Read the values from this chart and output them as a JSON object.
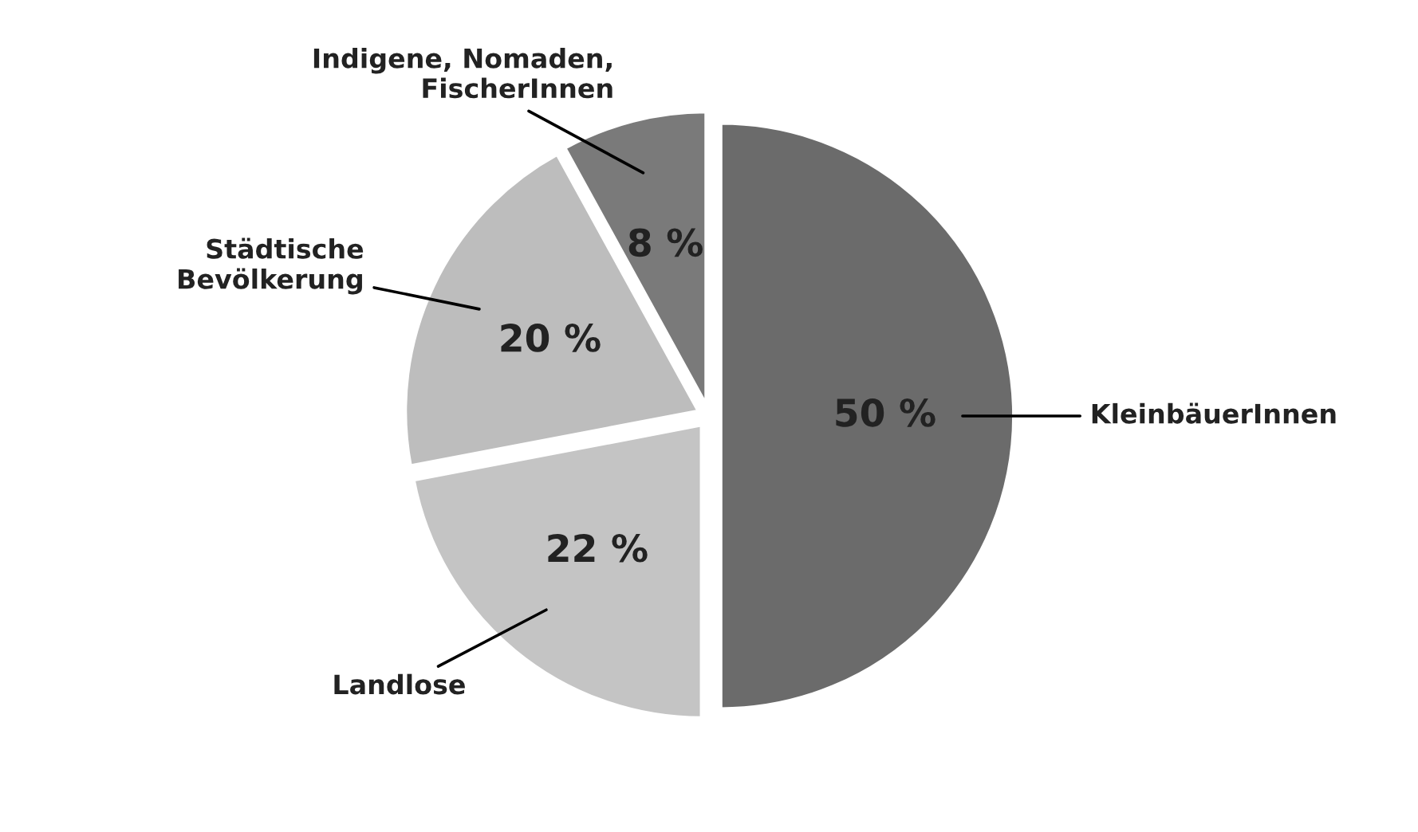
{
  "chart_data": {
    "type": "pie",
    "categories": [
      "KleinbäuerInnen",
      "Landlose",
      "Städtische\nBevölkerung",
      "Indigene, Nomaden,\nFischerInnen"
    ],
    "values": [
      50,
      22,
      20,
      8
    ],
    "colors": [
      "#6b6b6b",
      "#c4c4c4",
      "#bdbdbd",
      "#7a7a7a"
    ],
    "value_labels": [
      "50 %",
      "22 %",
      "20 %",
      "8 %"
    ],
    "legend": false
  }
}
